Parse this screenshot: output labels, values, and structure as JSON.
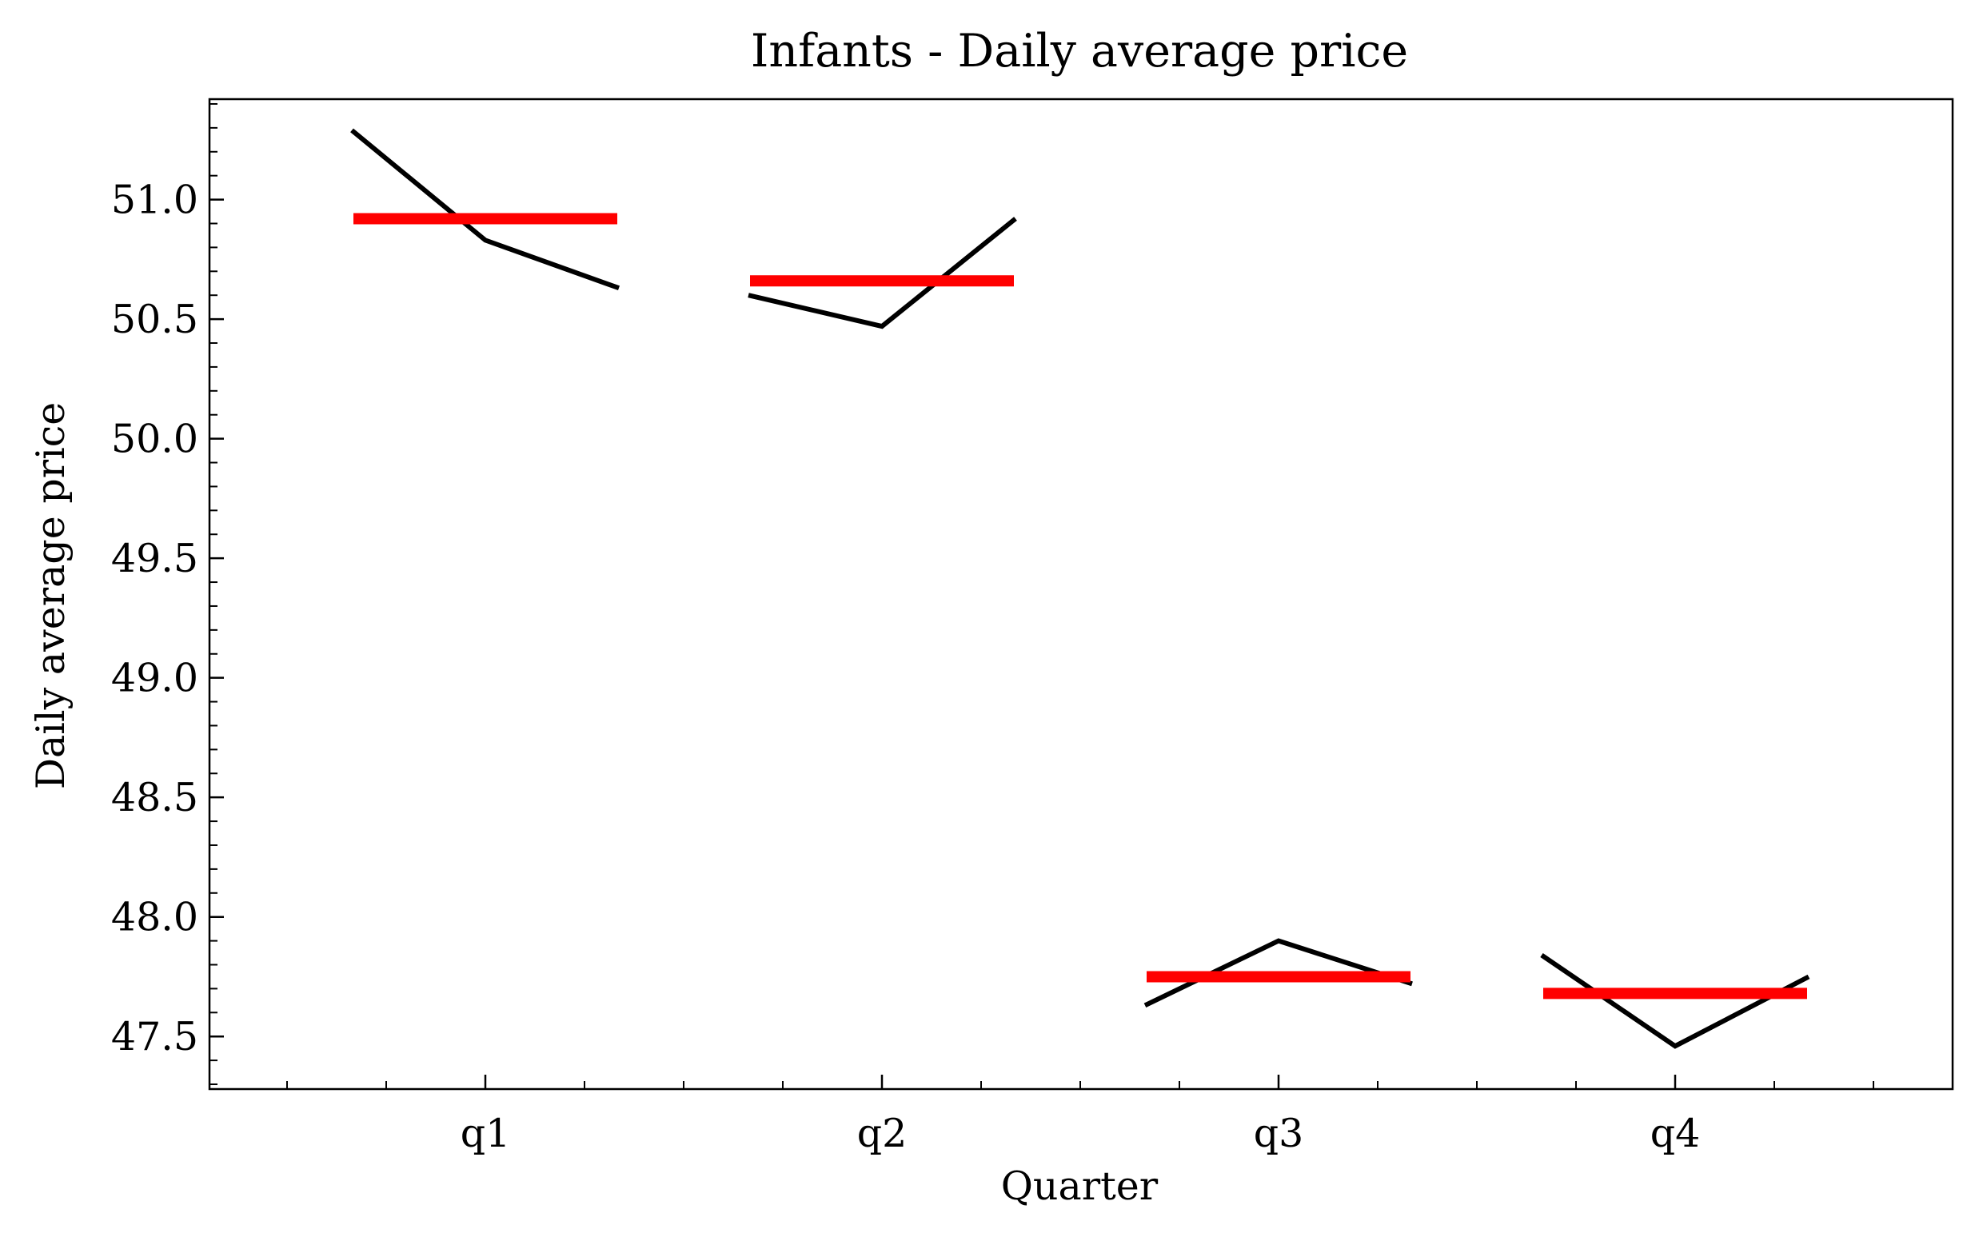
{
  "chart_data": {
    "type": "line",
    "title": "Infants - Daily average price",
    "xlabel": "Quarter",
    "ylabel": "Daily average price",
    "categories": [
      "q1",
      "q2",
      "q3",
      "q4"
    ],
    "ylim": [
      47.28,
      51.42
    ],
    "yticks": [
      47.5,
      48.0,
      48.5,
      49.0,
      49.5,
      50.0,
      50.5,
      51.0
    ],
    "ytick_labels": [
      "47.5",
      "48.0",
      "48.5",
      "49.0",
      "49.5",
      "50.0",
      "50.5",
      "51.0"
    ],
    "grid": false,
    "series": [
      {
        "role": "monthly values",
        "color": "#000000",
        "segments": [
          {
            "category": "q1",
            "values": [
              51.29,
              50.83,
              50.63
            ]
          },
          {
            "category": "q2",
            "values": [
              50.6,
              50.47,
              50.92
            ]
          },
          {
            "category": "q3",
            "values": [
              47.63,
              47.9,
              47.72
            ]
          },
          {
            "category": "q4",
            "values": [
              47.84,
              47.46,
              47.75
            ]
          }
        ]
      },
      {
        "role": "quarter mean",
        "color": "#ff0000",
        "values": [
          50.92,
          50.66,
          47.75,
          47.68
        ]
      }
    ]
  }
}
